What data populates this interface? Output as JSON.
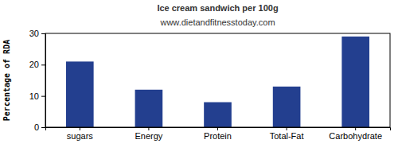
{
  "chart_data": {
    "type": "bar",
    "title": "Ice cream sandwich per 100g",
    "subtitle": "www.dietandfitnesstoday.com",
    "ylabel": "Percentage of RDA",
    "categories": [
      "sugars",
      "Energy",
      "Protein",
      "Total-Fat",
      "Carbohydrate"
    ],
    "values": [
      21,
      12,
      8,
      13,
      29
    ],
    "color": "#233f8f",
    "ylim": [
      0,
      30
    ],
    "yticks": [
      0,
      10,
      20,
      30
    ],
    "grid": false
  }
}
